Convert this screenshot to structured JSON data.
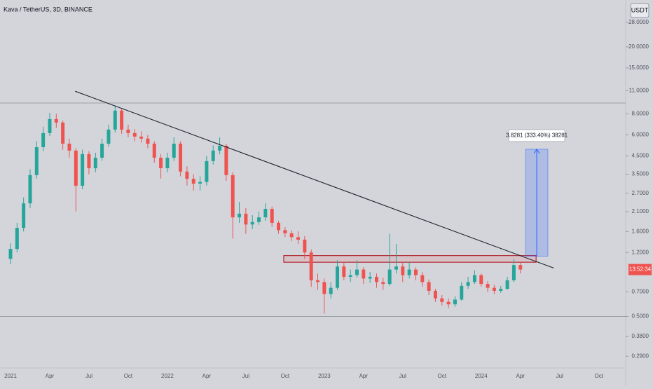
{
  "chart_data": {
    "type": "candlestick",
    "title": "Kava / TetherUS, 3D, BINANCE",
    "currency_button": "USDT",
    "countdown": "13:52:34",
    "log_scale": true,
    "up_color": "#26a69a",
    "down_color": "#ef5350",
    "categories": [
      "2021",
      null,
      null,
      null,
      null,
      null,
      "Apr",
      null,
      null,
      null,
      null,
      null,
      "Jul",
      null,
      null,
      null,
      null,
      null,
      "Oct",
      null,
      null,
      null,
      null,
      null,
      "2022",
      null,
      null,
      null,
      null,
      null,
      "Apr",
      null,
      null,
      null,
      null,
      null,
      "Jul",
      null,
      null,
      null,
      null,
      null,
      "Oct",
      null,
      null,
      null,
      null,
      null,
      "2023",
      null,
      null,
      null,
      null,
      null,
      "Apr",
      null,
      null,
      null,
      null,
      null,
      "Jul",
      null,
      null,
      null,
      null,
      null,
      "Oct",
      null,
      null,
      null,
      null,
      null,
      "2024",
      null,
      null,
      null,
      null,
      null,
      "Apr",
      null,
      null,
      null,
      null,
      null,
      "Jul",
      null,
      null,
      null,
      null,
      null,
      "Oct",
      null,
      null
    ],
    "open": [
      1.1,
      1.26,
      1.68,
      2.35,
      3.46,
      5.07,
      6.15,
      7.45,
      7.1,
      5.32,
      4.84,
      2.99,
      4.61,
      3.8,
      4.39,
      5.32,
      6.45,
      8.36,
      6.45,
      6.15,
      5.86,
      5.7,
      5.32,
      4.39,
      3.8,
      4.39,
      5.32,
      3.63,
      3.29,
      3.08,
      3.15,
      4.19,
      4.84,
      5.17,
      3.46,
      1.94,
      2.04,
      1.76,
      1.82,
      1.94,
      2.18,
      1.8,
      1.63,
      1.56,
      1.48,
      1.43,
      1.2,
      0.82,
      0.8,
      0.68,
      0.74,
      0.99,
      0.86,
      0.88,
      0.95,
      0.84,
      0.86,
      0.8,
      0.78,
      0.95,
      0.99,
      0.88,
      0.95,
      0.88,
      0.8,
      0.71,
      0.64,
      0.61,
      0.59,
      0.63,
      0.76,
      0.8,
      0.88,
      0.78,
      0.74,
      0.71,
      0.73,
      0.82,
      1.01,
      null,
      null,
      null,
      null,
      null,
      null,
      null,
      null,
      null,
      null,
      null,
      null,
      null,
      null
    ],
    "high": [
      1.36,
      1.8,
      2.55,
      3.75,
      5.5,
      6.7,
      8.1,
      8.0,
      7.3,
      5.7,
      5.0,
      4.9,
      4.8,
      4.7,
      5.7,
      6.9,
      9.0,
      8.6,
      6.9,
      6.5,
      6.3,
      6.0,
      5.5,
      4.6,
      4.7,
      5.8,
      5.5,
      3.9,
      3.5,
      3.4,
      4.5,
      5.2,
      5.8,
      5.3,
      3.6,
      2.4,
      2.2,
      2.0,
      2.1,
      2.35,
      2.25,
      1.85,
      1.7,
      1.62,
      1.6,
      1.5,
      1.25,
      0.9,
      0.84,
      0.8,
      1.08,
      1.05,
      0.95,
      1.08,
      0.98,
      0.92,
      0.9,
      0.85,
      1.55,
      1.35,
      1.05,
      1.05,
      0.98,
      0.92,
      0.83,
      0.73,
      0.67,
      0.64,
      0.66,
      0.8,
      0.86,
      0.94,
      0.9,
      0.81,
      0.77,
      0.76,
      0.86,
      1.1,
      1.05,
      null,
      null,
      null,
      null,
      null,
      null,
      null,
      null,
      null,
      null,
      null,
      null,
      null,
      null
    ],
    "low": [
      1.02,
      1.2,
      1.6,
      2.2,
      3.3,
      4.8,
      5.9,
      6.6,
      4.9,
      4.4,
      2.1,
      2.85,
      3.5,
      3.6,
      4.2,
      5.1,
      6.2,
      6.1,
      5.8,
      5.5,
      5.4,
      5.0,
      4.1,
      3.3,
      3.6,
      4.2,
      3.4,
      3.0,
      2.8,
      2.8,
      3.0,
      4.0,
      4.6,
      3.2,
      1.45,
      1.8,
      1.55,
      1.65,
      1.75,
      1.85,
      1.7,
      1.55,
      1.48,
      1.4,
      1.35,
      1.1,
      0.75,
      0.72,
      0.52,
      0.64,
      0.72,
      0.82,
      0.8,
      0.85,
      0.78,
      0.79,
      0.74,
      0.72,
      0.76,
      0.9,
      0.8,
      0.84,
      0.82,
      0.75,
      0.67,
      0.61,
      0.58,
      0.56,
      0.57,
      0.62,
      0.73,
      0.78,
      0.75,
      0.7,
      0.68,
      0.69,
      0.72,
      0.8,
      0.9,
      null,
      null,
      null,
      null,
      null,
      null,
      null,
      null,
      null,
      null,
      null,
      null,
      null,
      null
    ],
    "close": [
      1.26,
      1.68,
      2.35,
      3.46,
      5.07,
      6.15,
      7.45,
      7.1,
      5.32,
      4.84,
      2.99,
      4.61,
      3.8,
      4.39,
      5.32,
      6.45,
      8.36,
      6.45,
      6.15,
      5.86,
      5.7,
      5.32,
      4.39,
      3.8,
      4.39,
      5.32,
      3.63,
      3.29,
      3.08,
      3.15,
      4.19,
      4.84,
      5.17,
      3.46,
      1.94,
      2.04,
      1.76,
      1.82,
      1.94,
      2.18,
      1.8,
      1.63,
      1.56,
      1.48,
      1.43,
      1.2,
      0.82,
      0.8,
      0.68,
      0.74,
      0.99,
      0.86,
      0.88,
      0.95,
      0.84,
      0.86,
      0.8,
      0.78,
      0.95,
      0.99,
      0.88,
      0.95,
      0.88,
      0.8,
      0.71,
      0.64,
      0.61,
      0.59,
      0.63,
      0.76,
      0.8,
      0.88,
      0.78,
      0.74,
      0.71,
      0.73,
      0.82,
      1.01,
      0.95,
      null,
      null,
      null,
      null,
      null,
      null,
      null,
      null,
      null,
      null,
      null,
      null,
      null,
      null
    ],
    "ylim": [
      0.247,
      38
    ],
    "yticks": [
      {
        "value": 28,
        "label": "28.0000"
      },
      {
        "value": 20,
        "label": "20.0000"
      },
      {
        "value": 15,
        "label": "15.0000"
      },
      {
        "value": 11,
        "label": "11.0000"
      },
      {
        "value": 8,
        "label": "8.0000"
      },
      {
        "value": 6,
        "label": "6.0000"
      },
      {
        "value": 4.5,
        "label": "4.5000"
      },
      {
        "value": 3.5,
        "label": "3.5000"
      },
      {
        "value": 2.7,
        "label": "2.7000"
      },
      {
        "value": 2.1,
        "label": "2.1000"
      },
      {
        "value": 1.6,
        "label": "1.6000"
      },
      {
        "value": 1.2,
        "label": "1.2000"
      },
      {
        "value": 0.7,
        "label": "0.7000"
      },
      {
        "value": 0.5,
        "label": "0.5000"
      },
      {
        "value": 0.38,
        "label": "0.3800"
      },
      {
        "value": 0.29,
        "label": "0.2900"
      }
    ],
    "hlines": [
      9.28,
      0.5
    ],
    "trendline": {
      "from": [
        9.9,
        10.9
      ],
      "to": [
        83.1,
        0.97
      ]
    },
    "support_zone": {
      "x": [
        41.8,
        80.4
      ],
      "y": [
        1.05,
        1.15
      ]
    },
    "measure": {
      "x": [
        78.8,
        82.2
      ],
      "y": [
        1.14,
        4.93
      ],
      "label": "3.8281 (333.40%) 38281"
    }
  }
}
